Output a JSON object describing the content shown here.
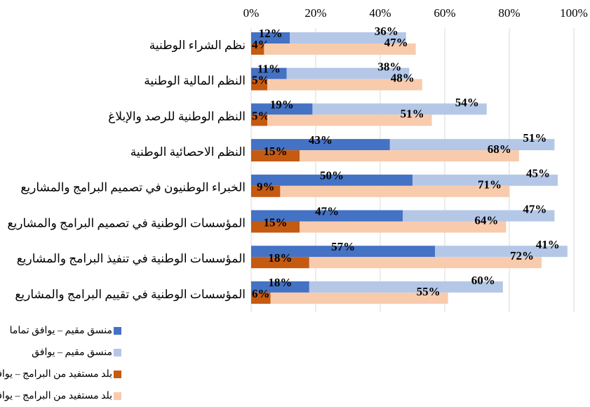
{
  "chart_data": {
    "type": "bar",
    "orientation": "horizontal",
    "categories": [
      "نظم الشراء الوطنية",
      "النظم المالية الوطنية",
      "النظم الوطنية للرصد والإبلاغ",
      "النظم الاحصائية الوطنية",
      "الخبراء الوطنيون في تصميم البرامج والمشاريع",
      "المؤسسات الوطنية في تصميم البرامج والمشاريع",
      "المؤسسات الوطنية في تنفيذ البرامج والمشاريع",
      "المؤسسات الوطنية في تقييم البرامج والمشاريع"
    ],
    "series": [
      {
        "name": "منسق مقيم – يوافق تماما",
        "color": "#4472c4",
        "stack": "a",
        "values": [
          12,
          11,
          19,
          43,
          50,
          47,
          57,
          18
        ],
        "value_labels": [
          "12%",
          "11%",
          "19%",
          "43%",
          "50%",
          "47%",
          "57%",
          "18%"
        ]
      },
      {
        "name": "منسق مقيم – يوافق",
        "color": "#b4c7e7",
        "stack": "a",
        "values": [
          36,
          38,
          54,
          51,
          45,
          47,
          41,
          60
        ],
        "value_labels": [
          "36%",
          "38%",
          "54%",
          "51%",
          "45%",
          "47%",
          "41%",
          "60%"
        ]
      },
      {
        "name": "بلد مستفيد من البرامج – يوافق تماما",
        "color": "#c55a11",
        "stack": "b",
        "values": [
          4,
          5,
          5,
          15,
          9,
          15,
          18,
          6
        ],
        "value_labels": [
          "4%",
          "5%",
          "5%",
          "15%",
          "9%",
          "15%",
          "18%",
          "6%"
        ]
      },
      {
        "name": "بلد مستفيد من البرامج – يوافق",
        "color": "#f8cbad",
        "stack": "b",
        "values": [
          47,
          48,
          51,
          68,
          71,
          64,
          72,
          55
        ],
        "value_labels": [
          "47%",
          "48%",
          "51%",
          "68%",
          "71%",
          "64%",
          "72%",
          "55%"
        ]
      }
    ],
    "xlim": [
      0,
      100
    ],
    "xticks": [
      {
        "value": 0,
        "label": "0%"
      },
      {
        "value": 20,
        "label": "20%"
      },
      {
        "value": 40,
        "label": "40%"
      },
      {
        "value": 60,
        "label": "60%"
      },
      {
        "value": 80,
        "label": "80%"
      },
      {
        "value": 100,
        "label": "100%"
      }
    ],
    "grid": true,
    "legend": "bottom-left"
  }
}
